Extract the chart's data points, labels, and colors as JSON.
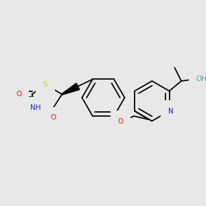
{
  "background_color": "#e8e8e8",
  "atom_colors": {
    "C": "#000000",
    "N": "#1a1aff",
    "O": "#ff2200",
    "S": "#cccc00",
    "H": "#4fa89a",
    "OH": "#4fa89a"
  },
  "bond_lw": 1.3,
  "font_size": 7.5,
  "figsize": [
    3.0,
    3.0
  ],
  "dpi": 100
}
